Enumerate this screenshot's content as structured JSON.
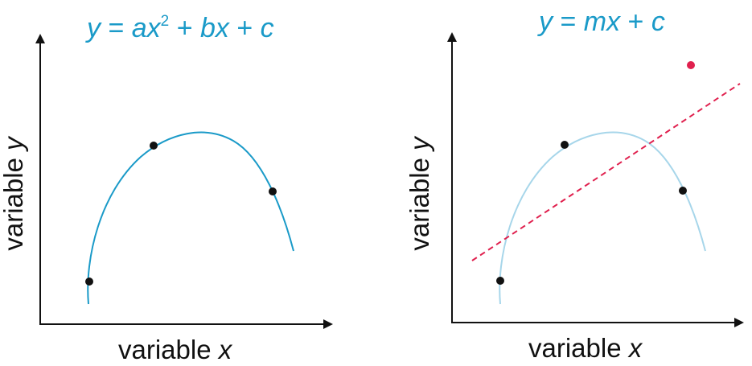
{
  "panels": [
    {
      "id": "quadratic",
      "title_parts": [
        "y",
        " = ",
        "ax",
        "2",
        " + ",
        "bx",
        " + ",
        "c"
      ],
      "xlabel_prefix": "variable ",
      "xlabel_var": "x",
      "ylabel_prefix": "variable ",
      "ylabel_var": "y"
    },
    {
      "id": "linear",
      "title_parts": [
        "y",
        " = ",
        "mx",
        " + ",
        "c"
      ],
      "xlabel_prefix": "variable ",
      "xlabel_var": "x",
      "ylabel_prefix": "variable ",
      "ylabel_var": "y"
    }
  ],
  "colors": {
    "curve_strong": "#1a9ac8",
    "curve_faded": "#a7d6ea",
    "fit_line": "#e0204e",
    "outlier_point": "#e0204e",
    "points": "#111111",
    "axes": "#111111",
    "title": "#1a9ac8"
  }
}
